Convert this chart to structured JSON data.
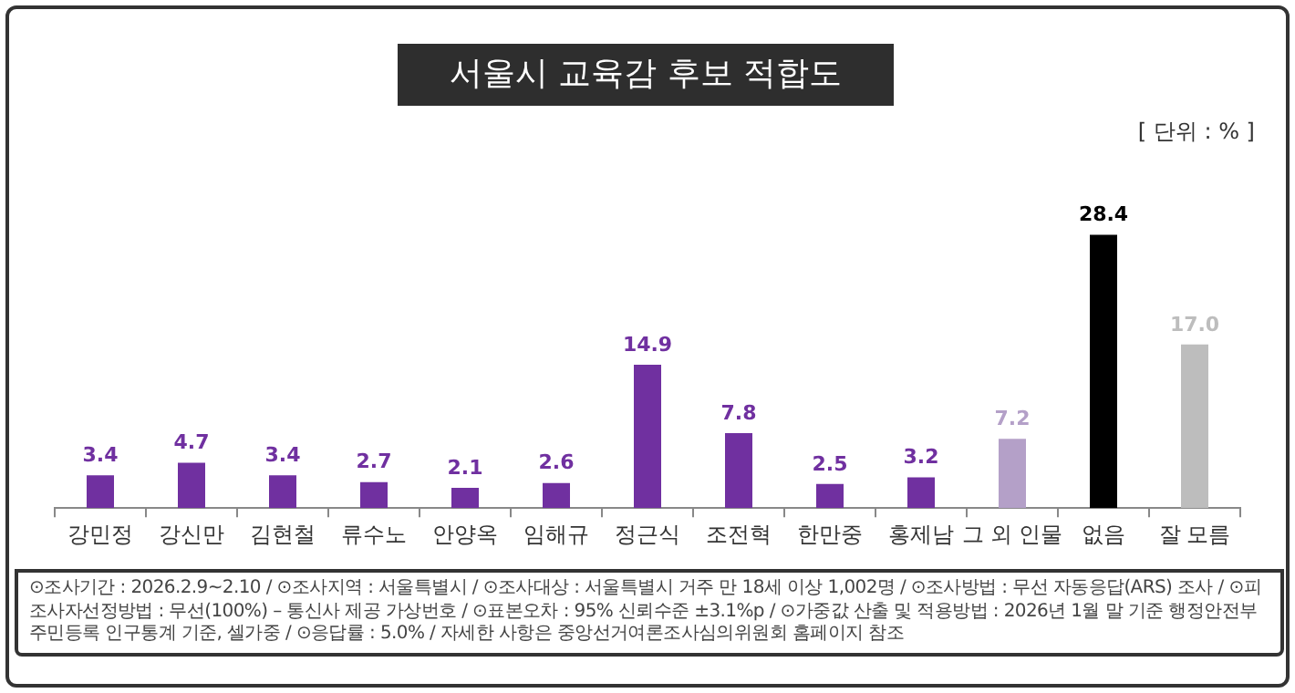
{
  "chart_data": {
    "type": "bar",
    "title": "서울시 교육감 후보 적합도",
    "categories": [
      "강민정",
      "강신만",
      "김현철",
      "류수노",
      "안양옥",
      "임해규",
      "정근식",
      "조전혁",
      "한만중",
      "홍제남",
      "그 외 인물",
      "없음",
      "잘 모름"
    ],
    "values": [
      3.4,
      4.7,
      3.4,
      2.7,
      2.1,
      2.6,
      14.9,
      7.8,
      2.5,
      3.2,
      7.2,
      28.4,
      17.0
    ],
    "colors": [
      "#7030a0",
      "#7030a0",
      "#7030a0",
      "#7030a0",
      "#7030a0",
      "#7030a0",
      "#7030a0",
      "#7030a0",
      "#7030a0",
      "#7030a0",
      "#b4a0c8",
      "#000000",
      "#bdbdbd"
    ],
    "value_labels": [
      "3.4",
      "4.7",
      "3.4",
      "2.7",
      "2.1",
      "2.6",
      "14.9",
      "7.8",
      "2.5",
      "3.2",
      "7.2",
      "28.4",
      "17.0"
    ],
    "grid": false,
    "legend": false,
    "annotations": [
      "[ 단위 : % ]",
      "⊙조사기간 : 2026.2.9~2.10 / ⊙조사지역 : 서울특별시 / ⊙조사대상 : 서울특별시 거주 만 18세 이상 1,002명 / ⊙조사방법 : 무선 자동응답(ARS) 조사 / ⊙피조사자선정방법 : 무선(100%) – 통신사 제공 가상번호 / ⊙표본오차 : 95% 신뢰수준 ±3.1%p / ⊙가중값 산출 및 적용방법 : 2026년 1월 말 기준 행정안전부 주민등록 인구통계 기준, 셀가중 / ⊙응답률 : 5.0% / 자세한 사항은 중앙선거여론조사심의위원회 홈페이지 참조"
    ]
  }
}
